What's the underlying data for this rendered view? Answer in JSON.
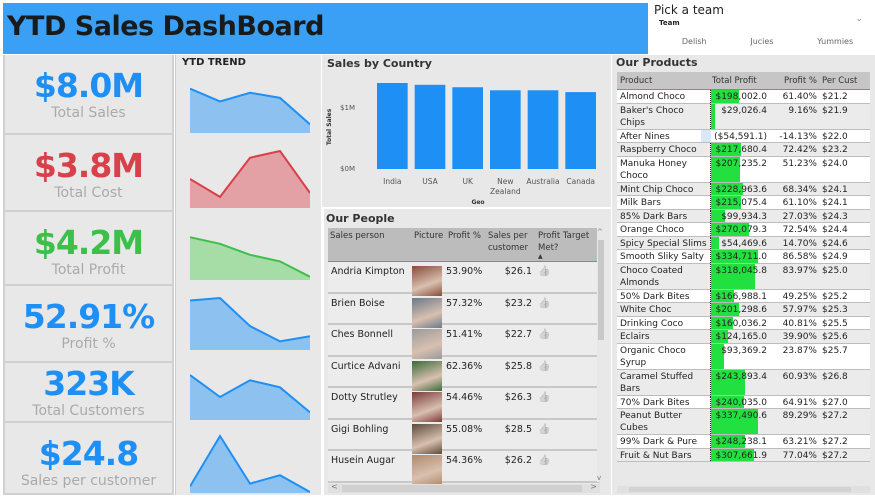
{
  "header": {
    "title": "YTD Sales DashBoard"
  },
  "team_picker": {
    "title": "Pick a team",
    "field_label": "Team",
    "options": [
      "Delish",
      "Jucies",
      "Yummies"
    ]
  },
  "kpis": [
    {
      "value": "$8.0M",
      "label": "Total Sales",
      "color": "#1e8ff5"
    },
    {
      "value": "$3.8M",
      "label": "Total Cost",
      "color": "#d9404a"
    },
    {
      "value": "$4.2M",
      "label": "Total Profit",
      "color": "#3cc04a"
    },
    {
      "value": "52.91%",
      "label": "Profit %",
      "color": "#1e8ff5"
    },
    {
      "value": "323K",
      "label": "Total Customers",
      "color": "#1e8ff5"
    },
    {
      "value": "$24.8",
      "label": "Sales per customer",
      "color": "#1e8ff5"
    }
  ],
  "trend": {
    "title": "YTD TREND"
  },
  "chart_data": [
    {
      "type": "bar",
      "title": "Sales by Country",
      "categories": [
        "India",
        "USA",
        "UK",
        "New Zealand",
        "Australia",
        "Canada"
      ],
      "values": [
        1.42,
        1.39,
        1.35,
        1.3,
        1.3,
        1.27
      ],
      "xlabel": "Geo",
      "ylabel": "Total Sales",
      "ytick_labels": [
        "$0M",
        "$1M"
      ],
      "ylim": [
        0,
        1.5
      ],
      "color": "#1e8ff5"
    },
    {
      "type": "area",
      "title": "YTD TREND - Total Sales",
      "x": [
        1,
        2,
        3,
        4,
        5
      ],
      "values": [
        0.85,
        0.6,
        0.77,
        0.67,
        0.15
      ],
      "color": "#1e8ff5"
    },
    {
      "type": "area",
      "title": "YTD TREND - Total Cost",
      "x": [
        1,
        2,
        3,
        4,
        5
      ],
      "values": [
        0.5,
        0.18,
        0.88,
        1.0,
        0.25
      ],
      "color": "#d9404a"
    },
    {
      "type": "area",
      "title": "YTD TREND - Total Profit",
      "x": [
        1,
        2,
        3,
        4,
        5
      ],
      "values": [
        0.95,
        0.8,
        0.55,
        0.4,
        0.05
      ],
      "color": "#3cc04a"
    },
    {
      "type": "area",
      "title": "YTD TREND - Profit %",
      "x": [
        1,
        2,
        3,
        4,
        5
      ],
      "values": [
        0.95,
        1.0,
        0.45,
        0.15,
        0.25
      ],
      "color": "#1e8ff5"
    },
    {
      "type": "area",
      "title": "YTD TREND - Total Customers",
      "x": [
        1,
        2,
        3,
        4,
        5
      ],
      "values": [
        1.0,
        0.5,
        0.88,
        0.72,
        0.15
      ],
      "color": "#1e8ff5"
    },
    {
      "type": "area",
      "title": "YTD TREND - Sales per customer",
      "x": [
        1,
        2,
        3,
        4,
        5
      ],
      "values": [
        0.1,
        1.0,
        0.15,
        0.3,
        0.0
      ],
      "color": "#1e8ff5"
    }
  ],
  "country_chart": {
    "title": "Sales by Country",
    "ylabel": "Total Sales",
    "xlabel": "Geo",
    "yticks": [
      "$1M",
      "$0M"
    ],
    "categories": [
      "India",
      "USA",
      "UK",
      "New Zealand",
      "Australia",
      "Canada"
    ]
  },
  "people": {
    "title": "Our People",
    "columns": [
      "Sales person",
      "Picture",
      "Profit %",
      "Sales per customer",
      "Profit Target Met?"
    ],
    "rows": [
      {
        "name": "Andria Kimpton",
        "profit_pct": "53.90%",
        "spc": "$26.1",
        "photo_color": "#8a4a3a"
      },
      {
        "name": "Brien Boise",
        "profit_pct": "57.32%",
        "spc": "$23.2",
        "photo_color": "#6a7a8a"
      },
      {
        "name": "Ches Bonnell",
        "profit_pct": "51.41%",
        "spc": "$22.7",
        "photo_color": "#9a9a9a"
      },
      {
        "name": "Curtice Advani",
        "profit_pct": "62.36%",
        "spc": "$25.8",
        "photo_color": "#3a6a3a"
      },
      {
        "name": "Dotty Strutley",
        "profit_pct": "54.46%",
        "spc": "$26.3",
        "photo_color": "#7a3a3a"
      },
      {
        "name": "Gigi Bohling",
        "profit_pct": "55.08%",
        "spc": "$28.5",
        "photo_color": "#5a4a3a"
      },
      {
        "name": "Husein Augar",
        "profit_pct": "54.36%",
        "spc": "$26.2",
        "photo_color": "#b08a6a"
      }
    ]
  },
  "products": {
    "title": "Our Products",
    "columns": [
      "Product",
      "Total Profit",
      "Profit %",
      "Per Cust"
    ],
    "rows": [
      {
        "name": "Almond Choco",
        "profit": "$198,002.0",
        "pct": "61.40%",
        "cust": "$21.2",
        "bar": 59,
        "lines": 1
      },
      {
        "name": "Baker's Choco Chips",
        "profit": "$29,026.4",
        "pct": "9.16%",
        "cust": "$21.9",
        "bar": 9,
        "lines": 2
      },
      {
        "name": "After Nines",
        "profit": "($54,591.1)",
        "pct": "-14.13%",
        "cust": "$22.0",
        "bar": 0,
        "lines": 1
      },
      {
        "name": "Raspberry Choco",
        "profit": "$217,680.4",
        "pct": "72.42%",
        "cust": "$23.2",
        "bar": 64,
        "lines": 1
      },
      {
        "name": "Manuka Honey Choco",
        "profit": "$207,235.2",
        "pct": "51.23%",
        "cust": "$24.0",
        "bar": 61,
        "lines": 2
      },
      {
        "name": "Mint Chip Choco",
        "profit": "$228,963.6",
        "pct": "68.34%",
        "cust": "$24.1",
        "bar": 68,
        "lines": 1
      },
      {
        "name": "Milk Bars",
        "profit": "$215,075.4",
        "pct": "61.10%",
        "cust": "$24.1",
        "bar": 64,
        "lines": 1
      },
      {
        "name": "85% Dark Bars",
        "profit": "$99,934.3",
        "pct": "27.03%",
        "cust": "$24.3",
        "bar": 30,
        "lines": 1
      },
      {
        "name": "Orange Choco",
        "profit": "$270,079.3",
        "pct": "72.54%",
        "cust": "$24.4",
        "bar": 80,
        "lines": 1
      },
      {
        "name": "Spicy Special Slims",
        "profit": "$54,469.6",
        "pct": "14.70%",
        "cust": "$24.6",
        "bar": 16,
        "lines": 1
      },
      {
        "name": "Smooth Sliky Salty",
        "profit": "$334,711.0",
        "pct": "86.58%",
        "cust": "$24.9",
        "bar": 99,
        "lines": 1
      },
      {
        "name": "Choco Coated Almonds",
        "profit": "$318,045.8",
        "pct": "83.97%",
        "cust": "$25.0",
        "bar": 94,
        "lines": 2
      },
      {
        "name": "50% Dark Bites",
        "profit": "$166,988.1",
        "pct": "49.25%",
        "cust": "$25.2",
        "bar": 49,
        "lines": 1
      },
      {
        "name": "White Choc",
        "profit": "$201,298.6",
        "pct": "57.97%",
        "cust": "$25.3",
        "bar": 60,
        "lines": 1
      },
      {
        "name": "Drinking Coco",
        "profit": "$160,036.2",
        "pct": "40.81%",
        "cust": "$25.5",
        "bar": 47,
        "lines": 1
      },
      {
        "name": "Eclairs",
        "profit": "$124,165.0",
        "pct": "39.90%",
        "cust": "$25.6",
        "bar": 37,
        "lines": 1
      },
      {
        "name": "Organic Choco Syrup",
        "profit": "$93,369.2",
        "pct": "23.87%",
        "cust": "$25.7",
        "bar": 28,
        "lines": 2
      },
      {
        "name": "Caramel Stuffed Bars",
        "profit": "$243,893.4",
        "pct": "60.93%",
        "cust": "$26.8",
        "bar": 72,
        "lines": 2
      },
      {
        "name": "70% Dark Bites",
        "profit": "$240,035.0",
        "pct": "64.91%",
        "cust": "$27.0",
        "bar": 71,
        "lines": 1
      },
      {
        "name": "Peanut Butter Cubes",
        "profit": "$337,490.6",
        "pct": "89.29%",
        "cust": "$27.2",
        "bar": 100,
        "lines": 2
      },
      {
        "name": "99% Dark & Pure",
        "profit": "$248,238.1",
        "pct": "63.21%",
        "cust": "$27.2",
        "bar": 73,
        "lines": 1
      },
      {
        "name": "Fruit & Nut Bars",
        "profit": "$307,661.9",
        "pct": "77.04%",
        "cust": "$27.2",
        "bar": 91,
        "lines": 1
      }
    ]
  },
  "icons": {
    "thumbs_up": "👍",
    "chevron_down": "⌄",
    "scroll_up": "^",
    "scroll_down": "v",
    "scroll_left": "<",
    "scroll_right": ">"
  }
}
